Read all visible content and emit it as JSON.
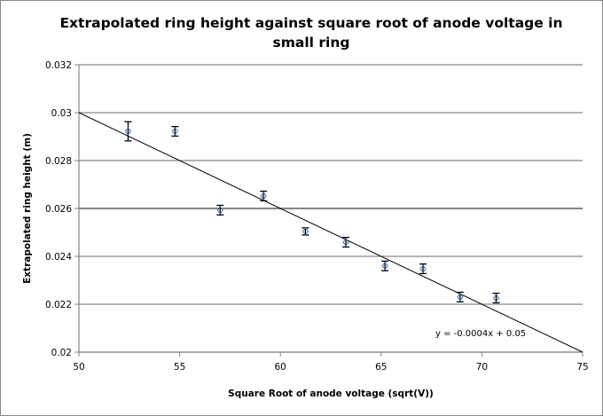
{
  "chart_data": {
    "type": "scatter",
    "title": "Extrapolated ring height against square root of anode voltage in small ring",
    "xlabel": "Square Root of anode voltage (sqrt(V))",
    "ylabel": "Extrapolated ring height (m)",
    "xlim": [
      50,
      75
    ],
    "ylim": [
      0.02,
      0.032
    ],
    "xticks": [
      "50",
      "55",
      "60",
      "65",
      "70",
      "75"
    ],
    "xtick_values": [
      50,
      55,
      60,
      65,
      70,
      75
    ],
    "yticks": [
      "0.02",
      "0.022",
      "0.024",
      "0.026",
      "0.028",
      "0.03",
      "0.032"
    ],
    "ytick_values": [
      0.02,
      0.022,
      0.024,
      0.026,
      0.028,
      0.03,
      0.032
    ],
    "grid": "horizontal",
    "series": [
      {
        "name": "Extrapolated ring height",
        "x": [
          52.44,
          54.77,
          57.01,
          59.16,
          61.24,
          63.25,
          65.19,
          67.08,
          68.92,
          70.71
        ],
        "y": [
          0.02922,
          0.02922,
          0.02593,
          0.02652,
          0.02504,
          0.02459,
          0.0236,
          0.02348,
          0.0223,
          0.02226
        ],
        "yerr": [
          0.0004,
          0.0002,
          0.0002,
          0.0002,
          0.00015,
          0.0002,
          0.0002,
          0.0002,
          0.0002,
          0.0002
        ],
        "marker_color": "#4a6fa5"
      }
    ],
    "trendline": {
      "slope": -0.0004,
      "intercept": 0.05,
      "label": "y = -0.0004x + 0.05"
    }
  }
}
